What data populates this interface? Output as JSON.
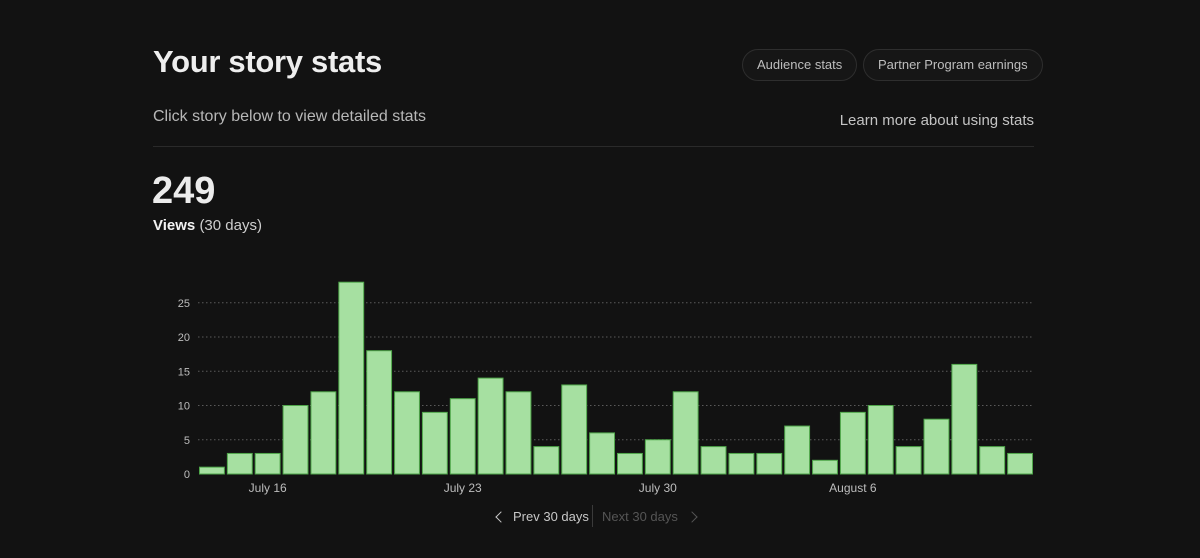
{
  "header": {
    "title": "Your story stats",
    "audience_button": "Audience stats",
    "partner_button": "Partner Program earnings",
    "subtitle": "Click story below to view detailed stats",
    "learn_link": "Learn more about using stats"
  },
  "summary": {
    "total": "249",
    "label": "Views",
    "period": "(30 days)"
  },
  "pager": {
    "prev": "Prev 30 days",
    "next": "Next 30 days"
  },
  "colors": {
    "bar_fill": "#a6e0a1",
    "bar_stroke": "#4fa64a",
    "background": "#121212"
  },
  "chart_data": {
    "type": "bar",
    "x_tick_labels": [
      "July 16",
      "July 23",
      "July 30",
      "August 6"
    ],
    "x_tick_indices": [
      2,
      9,
      16,
      23
    ],
    "values": [
      1,
      3,
      3,
      10,
      12,
      28,
      18,
      12,
      9,
      11,
      14,
      12,
      4,
      13,
      6,
      3,
      5,
      12,
      4,
      3,
      3,
      7,
      2,
      9,
      10,
      4,
      8,
      16,
      4,
      3
    ],
    "y_ticks": [
      0,
      5,
      10,
      15,
      20,
      25
    ],
    "ylim": [
      0,
      28
    ],
    "grid": true
  }
}
